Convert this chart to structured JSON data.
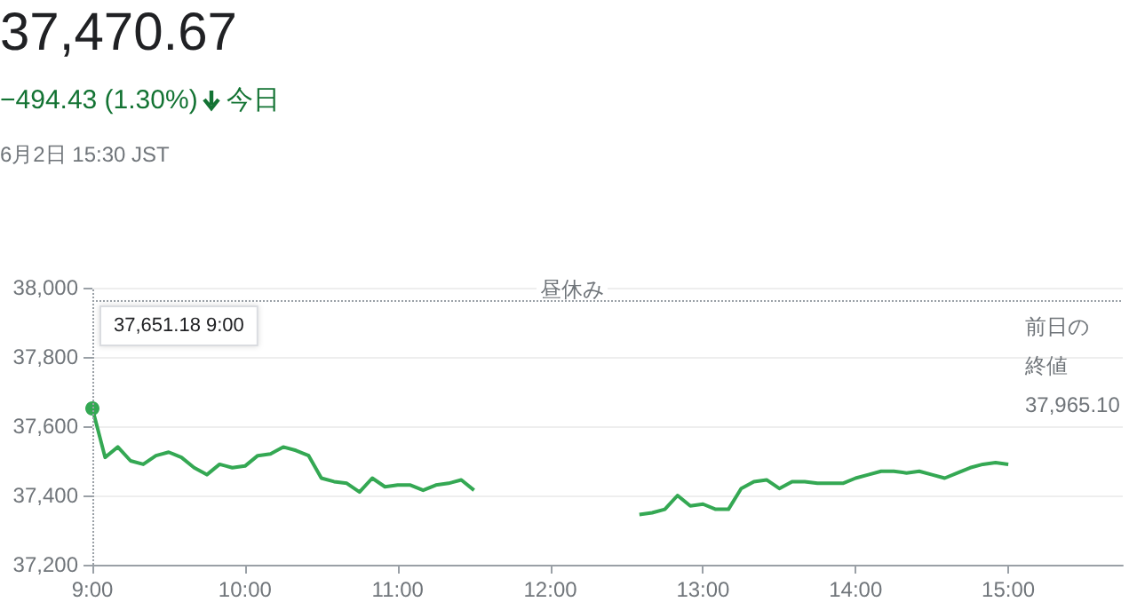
{
  "chart_data": {
    "type": "line",
    "title": "37,470.67",
    "subtitle": "−494.43 (1.30%)",
    "annotations": [
      "今日",
      "6月2日 15:30 JST",
      "37,651.18 9:00",
      "昼休み"
    ],
    "x": [
      9,
      9.0833,
      9.1667,
      9.25,
      9.3333,
      9.4167,
      9.5,
      9.5833,
      9.6667,
      9.75,
      9.8333,
      9.9167,
      10,
      10.0833,
      10.1667,
      10.25,
      10.3333,
      10.4167,
      10.5,
      10.5833,
      10.6667,
      10.75,
      10.8333,
      10.9167,
      11,
      11.0833,
      11.1667,
      11.25,
      11.3333,
      11.4167,
      11.5,
      12,
      12.5833,
      12.6667,
      12.75,
      12.8333,
      12.9167,
      13,
      13.0833,
      13.1667,
      13.25,
      13.3333,
      13.4167,
      13.5,
      13.5833,
      13.6667,
      13.75,
      13.8333,
      13.9167,
      14,
      14.0833,
      14.1667,
      14.25,
      14.3333,
      14.4167,
      14.5,
      14.5833,
      14.6667,
      14.75,
      14.8333,
      14.9167,
      15
    ],
    "series": [
      {
        "color": "#34a853",
        "values": [
          37651.18,
          37510,
          37540,
          37500,
          37490,
          37515,
          37525,
          37510,
          37480,
          37460,
          37490,
          37480,
          37485,
          37515,
          37520,
          37540,
          37530,
          37515,
          37450,
          37440,
          37435,
          37410,
          37450,
          37425,
          37430,
          37430,
          37415,
          37430,
          37435,
          37445,
          37415,
          null,
          37345,
          37350,
          37360,
          37400,
          37370,
          37375,
          37360,
          37360,
          37420,
          37440,
          37445,
          37420,
          37440,
          37440,
          37435,
          37435,
          37435,
          37450,
          37460,
          37470,
          37470,
          37465,
          37470,
          37460,
          37450,
          37465,
          37480,
          37490,
          37495,
          37490
        ]
      }
    ],
    "xlim": [
      9,
      15.75
    ],
    "xticks": [
      {
        "value": 9,
        "label": "9:00"
      },
      {
        "value": 10,
        "label": "10:00"
      },
      {
        "value": 11,
        "label": "11:00"
      },
      {
        "value": 12,
        "label": "12:00"
      },
      {
        "value": 13,
        "label": "13:00"
      },
      {
        "value": 14,
        "label": "14:00"
      },
      {
        "value": 15,
        "label": "15:00"
      }
    ],
    "ylim": [
      37200,
      38000
    ],
    "yticks": [
      {
        "value": 37200,
        "label": "37,200"
      },
      {
        "value": 37400,
        "label": "37,400"
      },
      {
        "value": 37600,
        "label": "37,600"
      },
      {
        "value": 37800,
        "label": "37,800"
      },
      {
        "value": 38000,
        "label": "38,000"
      }
    ],
    "grid": "y",
    "marker": "none",
    "line_style": "solid",
    "ref_lines": [
      {
        "axis": "y",
        "value": 37965.1,
        "label": "前日の終値\n37,965.10",
        "line_style": "dotted",
        "color": "#9aa0a6"
      },
      {
        "axis": "x",
        "value": 9,
        "label": null,
        "line_style": "dotted",
        "color": "#9aa0a6"
      }
    ]
  }
}
